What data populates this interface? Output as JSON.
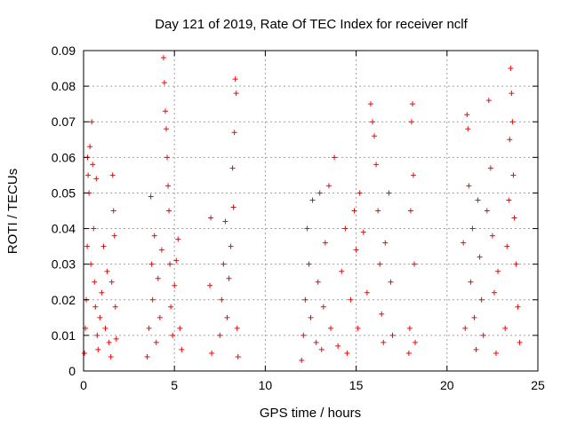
{
  "chart_data": {
    "type": "scatter",
    "title": "Day 121 of 2019, Rate Of TEC Index for receiver nclf",
    "xlabel": "GPS time / hours",
    "ylabel": "ROTI / TECUs",
    "xlim": [
      0,
      25
    ],
    "ylim": [
      0,
      0.09
    ],
    "xticks": [
      0,
      5,
      10,
      15,
      20,
      25
    ],
    "xtick_labels": [
      "0",
      "5",
      "10",
      "15",
      "20",
      "25"
    ],
    "yticks": [
      0,
      0.01,
      0.02,
      0.03,
      0.04,
      0.05,
      0.06,
      0.07,
      0.08,
      0.09
    ],
    "ytick_labels": [
      "0",
      "0.01",
      "0.02",
      "0.03",
      "0.04",
      "0.05",
      "0.06",
      "0.07",
      "0.08",
      "0.09"
    ],
    "grid": true,
    "marker": "+",
    "marker_color": "#ff0000",
    "series": [
      {
        "name": "ROTI",
        "points": [
          [
            0.05,
            0.005
          ],
          [
            0.1,
            0.012
          ],
          [
            0.15,
            0.02
          ],
          [
            0.2,
            0.035
          ],
          [
            0.22,
            0.06
          ],
          [
            0.25,
            0.055
          ],
          [
            0.3,
            0.05
          ],
          [
            0.35,
            0.063
          ],
          [
            0.4,
            0.03
          ],
          [
            0.45,
            0.07
          ],
          [
            0.5,
            0.058
          ],
          [
            0.55,
            0.04
          ],
          [
            0.6,
            0.025
          ],
          [
            0.65,
            0.018
          ],
          [
            0.7,
            0.054
          ],
          [
            0.75,
            0.01
          ],
          [
            0.8,
            0.006
          ],
          [
            0.9,
            0.015
          ],
          [
            1.0,
            0.022
          ],
          [
            1.1,
            0.035
          ],
          [
            1.2,
            0.012
          ],
          [
            1.3,
            0.028
          ],
          [
            1.4,
            0.008
          ],
          [
            1.5,
            0.004
          ],
          [
            1.55,
            0.025
          ],
          [
            1.6,
            0.055
          ],
          [
            1.65,
            0.045
          ],
          [
            1.7,
            0.038
          ],
          [
            1.75,
            0.018
          ],
          [
            1.8,
            0.009
          ],
          [
            3.5,
            0.004
          ],
          [
            3.6,
            0.012
          ],
          [
            3.7,
            0.049
          ],
          [
            3.75,
            0.03
          ],
          [
            3.8,
            0.02
          ],
          [
            3.9,
            0.038
          ],
          [
            4.0,
            0.008
          ],
          [
            4.1,
            0.026
          ],
          [
            4.2,
            0.015
          ],
          [
            4.3,
            0.034
          ],
          [
            4.4,
            0.088
          ],
          [
            4.45,
            0.081
          ],
          [
            4.5,
            0.073
          ],
          [
            4.55,
            0.068
          ],
          [
            4.6,
            0.06
          ],
          [
            4.65,
            0.052
          ],
          [
            4.7,
            0.045
          ],
          [
            4.75,
            0.03
          ],
          [
            4.8,
            0.018
          ],
          [
            4.9,
            0.01
          ],
          [
            5.0,
            0.024
          ],
          [
            5.1,
            0.031
          ],
          [
            5.2,
            0.037
          ],
          [
            5.3,
            0.012
          ],
          [
            5.4,
            0.006
          ],
          [
            7.0,
            0.043
          ],
          [
            6.95,
            0.024
          ],
          [
            7.05,
            0.005
          ],
          [
            7.5,
            0.01
          ],
          [
            7.6,
            0.02
          ],
          [
            7.7,
            0.03
          ],
          [
            7.8,
            0.042
          ],
          [
            7.9,
            0.015
          ],
          [
            8.0,
            0.026
          ],
          [
            8.1,
            0.035
          ],
          [
            8.2,
            0.057
          ],
          [
            8.25,
            0.046
          ],
          [
            8.3,
            0.067
          ],
          [
            8.35,
            0.082
          ],
          [
            8.4,
            0.078
          ],
          [
            8.45,
            0.012
          ],
          [
            8.5,
            0.004
          ],
          [
            12.0,
            0.003
          ],
          [
            12.1,
            0.01
          ],
          [
            12.2,
            0.02
          ],
          [
            12.3,
            0.04
          ],
          [
            12.4,
            0.03
          ],
          [
            12.5,
            0.015
          ],
          [
            12.6,
            0.048
          ],
          [
            12.8,
            0.008
          ],
          [
            12.9,
            0.025
          ],
          [
            13.0,
            0.05
          ],
          [
            13.1,
            0.006
          ],
          [
            13.2,
            0.018
          ],
          [
            13.3,
            0.036
          ],
          [
            13.5,
            0.052
          ],
          [
            13.6,
            0.012
          ],
          [
            13.8,
            0.06
          ],
          [
            14.0,
            0.007
          ],
          [
            14.2,
            0.028
          ],
          [
            14.4,
            0.04
          ],
          [
            14.5,
            0.005
          ],
          [
            14.7,
            0.02
          ],
          [
            14.9,
            0.045
          ],
          [
            15.0,
            0.034
          ],
          [
            15.1,
            0.012
          ],
          [
            15.2,
            0.05
          ],
          [
            15.4,
            0.039
          ],
          [
            15.6,
            0.022
          ],
          [
            15.8,
            0.075
          ],
          [
            15.9,
            0.07
          ],
          [
            16.0,
            0.066
          ],
          [
            16.1,
            0.058
          ],
          [
            16.2,
            0.045
          ],
          [
            16.3,
            0.03
          ],
          [
            16.4,
            0.016
          ],
          [
            16.5,
            0.008
          ],
          [
            16.6,
            0.036
          ],
          [
            16.8,
            0.05
          ],
          [
            16.9,
            0.025
          ],
          [
            17.0,
            0.01
          ],
          [
            17.9,
            0.005
          ],
          [
            17.95,
            0.012
          ],
          [
            18.0,
            0.045
          ],
          [
            18.05,
            0.07
          ],
          [
            18.1,
            0.075
          ],
          [
            18.15,
            0.055
          ],
          [
            18.2,
            0.03
          ],
          [
            18.25,
            0.008
          ],
          [
            20.9,
            0.036
          ],
          [
            21.0,
            0.012
          ],
          [
            21.1,
            0.072
          ],
          [
            21.15,
            0.068
          ],
          [
            21.2,
            0.052
          ],
          [
            21.3,
            0.025
          ],
          [
            21.4,
            0.04
          ],
          [
            21.5,
            0.015
          ],
          [
            21.6,
            0.006
          ],
          [
            21.7,
            0.048
          ],
          [
            21.8,
            0.032
          ],
          [
            21.9,
            0.02
          ],
          [
            22.0,
            0.01
          ],
          [
            22.2,
            0.045
          ],
          [
            22.3,
            0.076
          ],
          [
            22.4,
            0.057
          ],
          [
            22.5,
            0.038
          ],
          [
            22.6,
            0.022
          ],
          [
            22.7,
            0.005
          ],
          [
            22.8,
            0.028
          ],
          [
            23.2,
            0.012
          ],
          [
            23.3,
            0.035
          ],
          [
            23.4,
            0.048
          ],
          [
            23.45,
            0.065
          ],
          [
            23.5,
            0.085
          ],
          [
            23.55,
            0.078
          ],
          [
            23.6,
            0.07
          ],
          [
            23.65,
            0.055
          ],
          [
            23.7,
            0.043
          ],
          [
            23.8,
            0.03
          ],
          [
            23.9,
            0.018
          ],
          [
            24.0,
            0.008
          ]
        ]
      }
    ]
  }
}
